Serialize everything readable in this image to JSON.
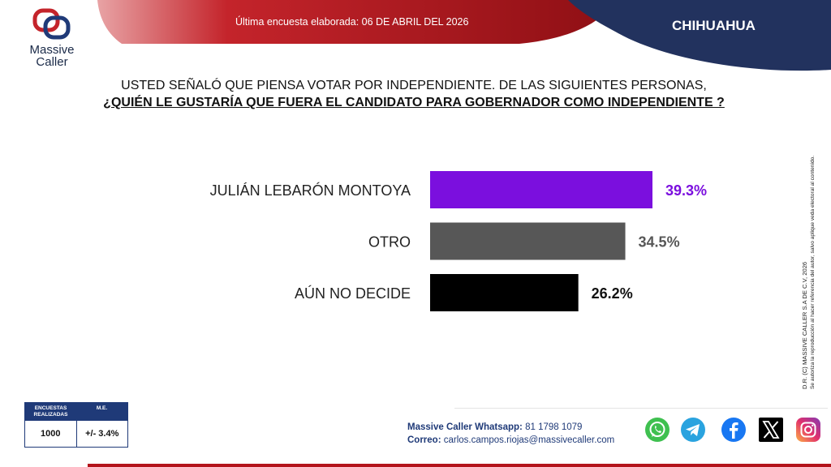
{
  "brand": {
    "name": "Massive Caller",
    "tagline": "",
    "colors": {
      "red": "#b3141b",
      "navy": "#1f3a78",
      "dark_navy": "#22325e"
    }
  },
  "header": {
    "date_text": "Última encuesta elaborada: 06 DE ABRIL DEL 2026",
    "state": "CHIHUAHUA"
  },
  "question": {
    "line1": "USTED SEÑALÓ QUE PIENSA VOTAR POR INDEPENDIENTE. DE LAS SIGUIENTES PERSONAS,",
    "line2": "¿QUIÉN LE GUSTARÍA QUE FUERA EL CANDIDATO PARA GOBERNADOR COMO INDEPENDIENTE ?"
  },
  "chart_data": {
    "type": "bar",
    "orientation": "horizontal",
    "categories": [
      "JULIÁN LEBARÓN MONTOYA",
      "OTRO",
      "AÚN NO DECIDE"
    ],
    "values": [
      39.3,
      34.5,
      26.2
    ],
    "labels": [
      "39.3%",
      "34.5%",
      "26.2%"
    ],
    "colors": [
      "#7b0fde",
      "#575757",
      "#000000"
    ],
    "label_colors": [
      "#7b0fde",
      "#575757",
      "#111111"
    ],
    "xlim": [
      0,
      39.3
    ]
  },
  "sample": {
    "col1_header": "ENCUESTAS REALIZADAS",
    "col2_header": "M.E.",
    "col1_value": "1000",
    "col2_value": "+/- 3.4%"
  },
  "contact": {
    "whatsapp_label": "Massive Caller Whatsapp:",
    "whatsapp_value": "81 1798 1079",
    "email_label": "Correo:",
    "email_value": "carlos.campos.riojas@massivecaller.com"
  },
  "socials": [
    {
      "icon": "whatsapp-icon",
      "color": "#3fc050"
    },
    {
      "icon": "telegram-icon",
      "color": "#2aa3df"
    },
    {
      "icon": "facebook-icon",
      "color": "#1877f2"
    },
    {
      "icon": "x-icon",
      "color": "#000000"
    },
    {
      "icon": "instagram-icon",
      "color": "#d6249f"
    }
  ],
  "side_note": {
    "line1": "D.R. (C) MASSIVE CALLER S.A DE C.V, 2026",
    "line2": "Se autoriza la reproducción al hacer referencia del autor, salvo aplique veda electoral al contenido."
  }
}
